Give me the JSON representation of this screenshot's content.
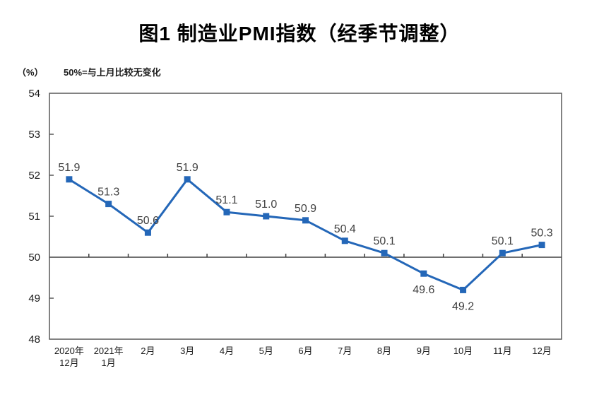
{
  "chart_data": {
    "type": "line",
    "title": "图1 制造业PMI指数（经季节调整）",
    "unit_label": "（%）",
    "annotation": "50%=与上月比较无变化",
    "xlabel": "",
    "ylabel": "%",
    "categories": [
      "2020年12月",
      "2021年1月",
      "2月",
      "3月",
      "4月",
      "5月",
      "6月",
      "7月",
      "8月",
      "9月",
      "10月",
      "11月",
      "12月"
    ],
    "x_tick_lines": [
      [
        "2020年",
        "12月"
      ],
      [
        "2021年",
        "1月"
      ],
      [
        "2月"
      ],
      [
        "3月"
      ],
      [
        "4月"
      ],
      [
        "5月"
      ],
      [
        "6月"
      ],
      [
        "7月"
      ],
      [
        "8月"
      ],
      [
        "9月"
      ],
      [
        "10月"
      ],
      [
        "11月"
      ],
      [
        "12月"
      ]
    ],
    "series": [
      {
        "name": "制造业PMI指数",
        "values": [
          51.9,
          51.3,
          50.6,
          51.9,
          51.1,
          51.0,
          50.9,
          50.4,
          50.1,
          49.6,
          49.2,
          50.1,
          50.3
        ]
      }
    ],
    "data_label_positions": [
      "above",
      "above",
      "above",
      "above",
      "above",
      "above",
      "above",
      "above",
      "above",
      "below",
      "below",
      "above",
      "above"
    ],
    "ylim": [
      48,
      54
    ],
    "y_ticks": [
      48,
      49,
      50,
      51,
      52,
      53,
      54
    ],
    "reference_line_y": 50,
    "grid": false,
    "legend": false,
    "marker": "square",
    "colors": {
      "line": "#2467B8",
      "marker": "#2467B8",
      "data_label": "#404040",
      "axis": "#595959",
      "reference_line": "#404040",
      "tick_label": "#1a1a1a",
      "title": "#000000"
    }
  }
}
